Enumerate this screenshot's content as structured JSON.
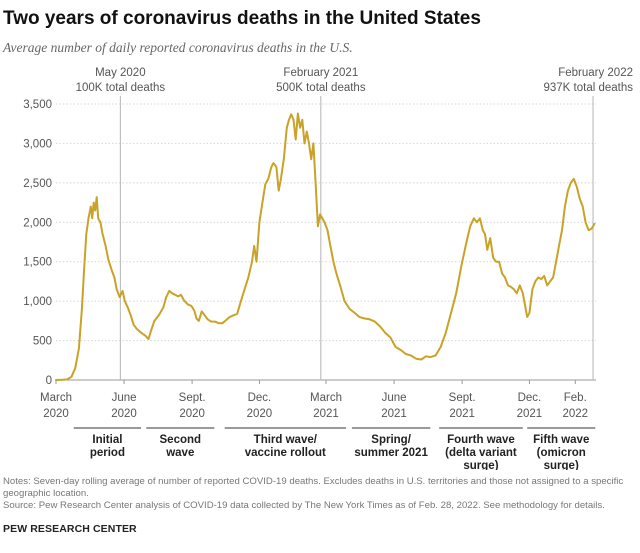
{
  "title": "Two years of coronavirus deaths in the United States",
  "subtitle": "Average number of daily reported coronavirus deaths in the U.S.",
  "chart_data": {
    "type": "line",
    "series_name": "Seven-day rolling average of daily reported COVID-19 deaths",
    "xlim": [
      "2020-03-01",
      "2022-03-01"
    ],
    "ylim": [
      0,
      3500
    ],
    "yticks": [
      {
        "value": 0,
        "label": "0"
      },
      {
        "value": 500,
        "label": "500"
      },
      {
        "value": 1000,
        "label": "1,000"
      },
      {
        "value": 1500,
        "label": "1,500"
      },
      {
        "value": 2000,
        "label": "2,000"
      },
      {
        "value": 2500,
        "label": "2,500"
      },
      {
        "value": 3000,
        "label": "3,000"
      },
      {
        "value": 3500,
        "label": "3,500"
      }
    ],
    "xticks": [
      {
        "date": "2020-03-01",
        "line1": "March",
        "line2": "2020"
      },
      {
        "date": "2020-06-01",
        "line1": "June",
        "line2": "2020"
      },
      {
        "date": "2020-09-01",
        "line1": "Sept.",
        "line2": "2020"
      },
      {
        "date": "2020-12-01",
        "line1": "Dec.",
        "line2": "2020"
      },
      {
        "date": "2021-03-01",
        "line1": "March",
        "line2": "2021"
      },
      {
        "date": "2021-06-01",
        "line1": "June",
        "line2": "2021"
      },
      {
        "date": "2021-09-01",
        "line1": "Sept.",
        "line2": "2021"
      },
      {
        "date": "2021-12-01",
        "line1": "Dec.",
        "line2": "2021"
      },
      {
        "date": "2022-02-01",
        "line1": "Feb.",
        "line2": "2022"
      }
    ],
    "markers": [
      {
        "date": "2020-05-27",
        "line1": "May 2020",
        "line2": "100K total deaths",
        "anchor": "middle"
      },
      {
        "date": "2021-02-22",
        "line1": "February 2021",
        "line2": "500K total deaths",
        "anchor": "middle"
      },
      {
        "date": "2022-02-25",
        "line1": "February 2022",
        "line2": "937K total deaths",
        "anchor": "end"
      }
    ],
    "periods": [
      {
        "start": "2020-03-25",
        "end": "2020-06-24",
        "line1": "Initial",
        "line2": "period",
        "line3": ""
      },
      {
        "start": "2020-07-01",
        "end": "2020-10-01",
        "line1": "Second",
        "line2": "wave",
        "line3": ""
      },
      {
        "start": "2020-10-15",
        "end": "2021-03-28",
        "line1": "Third wave/",
        "line2": "vaccine rollout",
        "line3": ""
      },
      {
        "start": "2021-04-05",
        "end": "2021-07-20",
        "line1": "Spring/",
        "line2": "summer 2021",
        "line3": ""
      },
      {
        "start": "2021-08-01",
        "end": "2021-11-22",
        "line1": "Fourth wave",
        "line2": "(delta variant",
        "line3": "surge)"
      },
      {
        "start": "2021-11-28",
        "end": "2022-02-28",
        "line1": "Fifth wave",
        "line2": "(omicron",
        "line3": "surge)"
      }
    ],
    "points": [
      [
        "2020-03-01",
        0
      ],
      [
        "2020-03-10",
        2
      ],
      [
        "2020-03-16",
        8
      ],
      [
        "2020-03-22",
        40
      ],
      [
        "2020-03-27",
        150
      ],
      [
        "2020-04-01",
        400
      ],
      [
        "2020-04-05",
        900
      ],
      [
        "2020-04-08",
        1400
      ],
      [
        "2020-04-11",
        1850
      ],
      [
        "2020-04-14",
        2050
      ],
      [
        "2020-04-17",
        2200
      ],
      [
        "2020-04-19",
        2050
      ],
      [
        "2020-04-21",
        2250
      ],
      [
        "2020-04-23",
        2150
      ],
      [
        "2020-04-25",
        2320
      ],
      [
        "2020-04-27",
        2050
      ],
      [
        "2020-04-30",
        2000
      ],
      [
        "2020-05-03",
        1850
      ],
      [
        "2020-05-07",
        1700
      ],
      [
        "2020-05-11",
        1520
      ],
      [
        "2020-05-15",
        1400
      ],
      [
        "2020-05-19",
        1300
      ],
      [
        "2020-05-22",
        1150
      ],
      [
        "2020-05-26",
        1050
      ],
      [
        "2020-05-30",
        1130
      ],
      [
        "2020-06-02",
        1000
      ],
      [
        "2020-06-06",
        920
      ],
      [
        "2020-06-10",
        820
      ],
      [
        "2020-06-14",
        700
      ],
      [
        "2020-06-18",
        650
      ],
      [
        "2020-06-24",
        600
      ],
      [
        "2020-06-30",
        560
      ],
      [
        "2020-07-04",
        520
      ],
      [
        "2020-07-08",
        640
      ],
      [
        "2020-07-12",
        750
      ],
      [
        "2020-07-18",
        820
      ],
      [
        "2020-07-24",
        920
      ],
      [
        "2020-07-28",
        1050
      ],
      [
        "2020-08-01",
        1130
      ],
      [
        "2020-08-05",
        1100
      ],
      [
        "2020-08-09",
        1080
      ],
      [
        "2020-08-13",
        1060
      ],
      [
        "2020-08-17",
        1080
      ],
      [
        "2020-08-21",
        1010
      ],
      [
        "2020-08-26",
        960
      ],
      [
        "2020-08-31",
        940
      ],
      [
        "2020-09-04",
        880
      ],
      [
        "2020-09-07",
        780
      ],
      [
        "2020-09-10",
        750
      ],
      [
        "2020-09-14",
        870
      ],
      [
        "2020-09-18",
        820
      ],
      [
        "2020-09-22",
        770
      ],
      [
        "2020-09-27",
        740
      ],
      [
        "2020-10-02",
        740
      ],
      [
        "2020-10-07",
        720
      ],
      [
        "2020-10-12",
        720
      ],
      [
        "2020-10-17",
        760
      ],
      [
        "2020-10-22",
        800
      ],
      [
        "2020-10-27",
        820
      ],
      [
        "2020-11-01",
        840
      ],
      [
        "2020-11-06",
        1000
      ],
      [
        "2020-11-11",
        1150
      ],
      [
        "2020-11-16",
        1300
      ],
      [
        "2020-11-21",
        1500
      ],
      [
        "2020-11-24",
        1700
      ],
      [
        "2020-11-27",
        1500
      ],
      [
        "2020-12-01",
        2000
      ],
      [
        "2020-12-05",
        2250
      ],
      [
        "2020-12-09",
        2480
      ],
      [
        "2020-12-13",
        2550
      ],
      [
        "2020-12-17",
        2700
      ],
      [
        "2020-12-20",
        2750
      ],
      [
        "2020-12-24",
        2700
      ],
      [
        "2020-12-27",
        2400
      ],
      [
        "2020-12-30",
        2550
      ],
      [
        "2021-01-03",
        2800
      ],
      [
        "2021-01-07",
        3200
      ],
      [
        "2021-01-10",
        3300
      ],
      [
        "2021-01-13",
        3370
      ],
      [
        "2021-01-16",
        3300
      ],
      [
        "2021-01-19",
        3050
      ],
      [
        "2021-01-22",
        3380
      ],
      [
        "2021-01-25",
        3200
      ],
      [
        "2021-01-28",
        3300
      ],
      [
        "2021-01-31",
        3000
      ],
      [
        "2021-02-03",
        3150
      ],
      [
        "2021-02-06",
        3000
      ],
      [
        "2021-02-09",
        2800
      ],
      [
        "2021-02-12",
        3000
      ],
      [
        "2021-02-15",
        2500
      ],
      [
        "2021-02-18",
        1950
      ],
      [
        "2021-02-21",
        2100
      ],
      [
        "2021-02-24",
        2050
      ],
      [
        "2021-02-27",
        2000
      ],
      [
        "2021-03-03",
        1900
      ],
      [
        "2021-03-07",
        1700
      ],
      [
        "2021-03-11",
        1500
      ],
      [
        "2021-03-15",
        1350
      ],
      [
        "2021-03-20",
        1200
      ],
      [
        "2021-03-26",
        1000
      ],
      [
        "2021-04-02",
        900
      ],
      [
        "2021-04-09",
        850
      ],
      [
        "2021-04-15",
        800
      ],
      [
        "2021-04-22",
        780
      ],
      [
        "2021-04-29",
        770
      ],
      [
        "2021-05-06",
        740
      ],
      [
        "2021-05-13",
        680
      ],
      [
        "2021-05-20",
        600
      ],
      [
        "2021-05-27",
        540
      ],
      [
        "2021-06-03",
        420
      ],
      [
        "2021-06-10",
        380
      ],
      [
        "2021-06-17",
        330
      ],
      [
        "2021-06-24",
        310
      ],
      [
        "2021-07-01",
        270
      ],
      [
        "2021-07-08",
        260
      ],
      [
        "2021-07-14",
        300
      ],
      [
        "2021-07-20",
        290
      ],
      [
        "2021-07-27",
        310
      ],
      [
        "2021-08-03",
        420
      ],
      [
        "2021-08-10",
        600
      ],
      [
        "2021-08-17",
        850
      ],
      [
        "2021-08-24",
        1100
      ],
      [
        "2021-08-31",
        1450
      ],
      [
        "2021-09-07",
        1750
      ],
      [
        "2021-09-12",
        1950
      ],
      [
        "2021-09-17",
        2050
      ],
      [
        "2021-09-21",
        2000
      ],
      [
        "2021-09-25",
        2050
      ],
      [
        "2021-09-29",
        1900
      ],
      [
        "2021-10-02",
        1850
      ],
      [
        "2021-10-05",
        1650
      ],
      [
        "2021-10-09",
        1800
      ],
      [
        "2021-10-13",
        1550
      ],
      [
        "2021-10-17",
        1500
      ],
      [
        "2021-10-21",
        1500
      ],
      [
        "2021-10-25",
        1350
      ],
      [
        "2021-10-29",
        1300
      ],
      [
        "2021-11-02",
        1200
      ],
      [
        "2021-11-06",
        1180
      ],
      [
        "2021-11-10",
        1150
      ],
      [
        "2021-11-14",
        1100
      ],
      [
        "2021-11-18",
        1200
      ],
      [
        "2021-11-22",
        1100
      ],
      [
        "2021-11-25",
        950
      ],
      [
        "2021-11-28",
        800
      ],
      [
        "2021-12-01",
        850
      ],
      [
        "2021-12-05",
        1150
      ],
      [
        "2021-12-09",
        1250
      ],
      [
        "2021-12-13",
        1300
      ],
      [
        "2021-12-17",
        1280
      ],
      [
        "2021-12-21",
        1320
      ],
      [
        "2021-12-25",
        1200
      ],
      [
        "2021-12-29",
        1250
      ],
      [
        "2022-01-02",
        1300
      ],
      [
        "2022-01-06",
        1500
      ],
      [
        "2022-01-10",
        1700
      ],
      [
        "2022-01-14",
        1900
      ],
      [
        "2022-01-18",
        2200
      ],
      [
        "2022-01-22",
        2400
      ],
      [
        "2022-01-26",
        2500
      ],
      [
        "2022-01-30",
        2550
      ],
      [
        "2022-02-03",
        2450
      ],
      [
        "2022-02-07",
        2300
      ],
      [
        "2022-02-11",
        2200
      ],
      [
        "2022-02-15",
        2000
      ],
      [
        "2022-02-19",
        1900
      ],
      [
        "2022-02-23",
        1920
      ],
      [
        "2022-02-27",
        1980
      ]
    ],
    "line_color": "#c9a227"
  },
  "notes": {
    "line1": "Notes: Seven-day rolling average of number of reported COVID-19 deaths. Excludes deaths in U.S. territories and those not assigned to a specific geographic location.",
    "line2": "Source: Pew Research Center analysis of COVID-19 data collected by The New York Times as of Feb. 28, 2022. See methodology for details."
  },
  "brand": "PEW RESEARCH CENTER"
}
